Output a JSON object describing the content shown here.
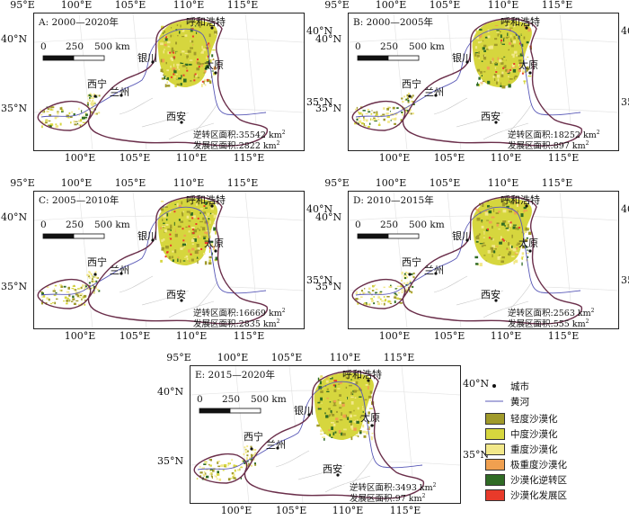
{
  "panels": [
    {
      "title": "A: 2000—2020年",
      "reversal_area": "逆转区面积:35542 km",
      "development_area": "发展区面积:2822 km"
    },
    {
      "title": "B: 2000—2005年",
      "reversal_area": "逆转区面积:18252 km",
      "development_area": "发展区面积:897 km"
    },
    {
      "title": "C: 2005—2010年",
      "reversal_area": "逆转区面积:16669 km",
      "development_area": "发展区面积:2835 km"
    },
    {
      "title": "D: 2010—2015年",
      "reversal_area": "逆转区面积:2563 km",
      "development_area": "发展区面积:555 km"
    },
    {
      "title": "E: 2015—2020年",
      "reversal_area": "逆转区面积:3493 km",
      "development_area": "发展区面积:97 km"
    }
  ],
  "area_unit_exponent": "2",
  "ticks": {
    "top": [
      "95°E",
      "100°E",
      "105°E",
      "110°E",
      "115°E"
    ],
    "bottom": [
      "100°E",
      "105°E",
      "110°E",
      "115°E"
    ],
    "left": [
      "40°N",
      "35°N"
    ],
    "right": [
      "40°N",
      "35°N"
    ]
  },
  "scale_bar": {
    "zero": "0",
    "mid": "250",
    "end": "500 km"
  },
  "cities": [
    "呼和浩特",
    "银川",
    "太原",
    "西宁",
    "兰州",
    "西安"
  ],
  "legend": {
    "city": "城市",
    "river": "黄河",
    "classes": [
      {
        "label": "轻度沙漠化",
        "color": "#a09a2a"
      },
      {
        "label": "中度沙漠化",
        "color": "#d6d63e"
      },
      {
        "label": "重度沙漠化",
        "color": "#f2e88a"
      },
      {
        "label": "极重度沙漠化",
        "color": "#f0a050"
      },
      {
        "label": "沙漠化逆转区",
        "color": "#2f6b25"
      },
      {
        "label": "沙漠化发展区",
        "color": "#e83a2a"
      }
    ]
  },
  "colors": {
    "boundary": "#6a2e4a",
    "river": "#5a5ab8",
    "frame": "#222222"
  }
}
